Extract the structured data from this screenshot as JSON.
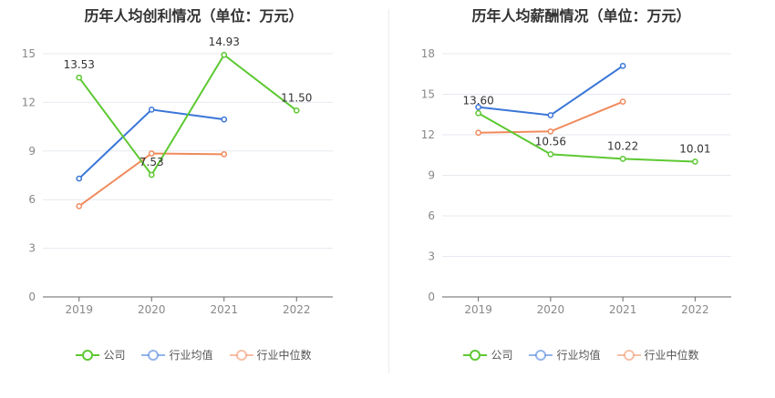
{
  "chart_data": [
    {
      "type": "line",
      "title": "历年人均创利情况（单位：万元）",
      "categories": [
        "2019",
        "2020",
        "2021",
        "2022"
      ],
      "ylim": [
        0,
        15
      ],
      "yticks": [
        0,
        3,
        6,
        9,
        12,
        15
      ],
      "grid": true,
      "legend_position": "bottom",
      "series": [
        {
          "name": "公司",
          "color": "#5dc832",
          "values": [
            13.53,
            7.53,
            14.93,
            11.5
          ],
          "labels": [
            "13.53",
            "7.53",
            "14.93",
            "11.50"
          ]
        },
        {
          "name": "行业均值",
          "color": "#3a76d8",
          "values": [
            7.3,
            11.55,
            10.95,
            null
          ]
        },
        {
          "name": "行业中位数",
          "color": "#f08a5c",
          "values": [
            5.6,
            8.85,
            8.8,
            null
          ]
        }
      ]
    },
    {
      "type": "line",
      "title": "历年人均薪酬情况（单位：万元）",
      "categories": [
        "2019",
        "2020",
        "2021",
        "2022"
      ],
      "ylim": [
        0,
        18
      ],
      "yticks": [
        0,
        3,
        6,
        9,
        12,
        15,
        18
      ],
      "grid": true,
      "legend_position": "bottom",
      "series": [
        {
          "name": "公司",
          "color": "#5dc832",
          "values": [
            13.6,
            10.56,
            10.22,
            10.01
          ],
          "labels": [
            "13.60",
            "10.56",
            "10.22",
            "10.01"
          ]
        },
        {
          "name": "行业均值",
          "color": "#3a76d8",
          "values": [
            14.05,
            13.45,
            17.1,
            null
          ]
        },
        {
          "name": "行业中位数",
          "color": "#f08a5c",
          "values": [
            12.15,
            12.25,
            14.45,
            null
          ]
        }
      ]
    }
  ]
}
